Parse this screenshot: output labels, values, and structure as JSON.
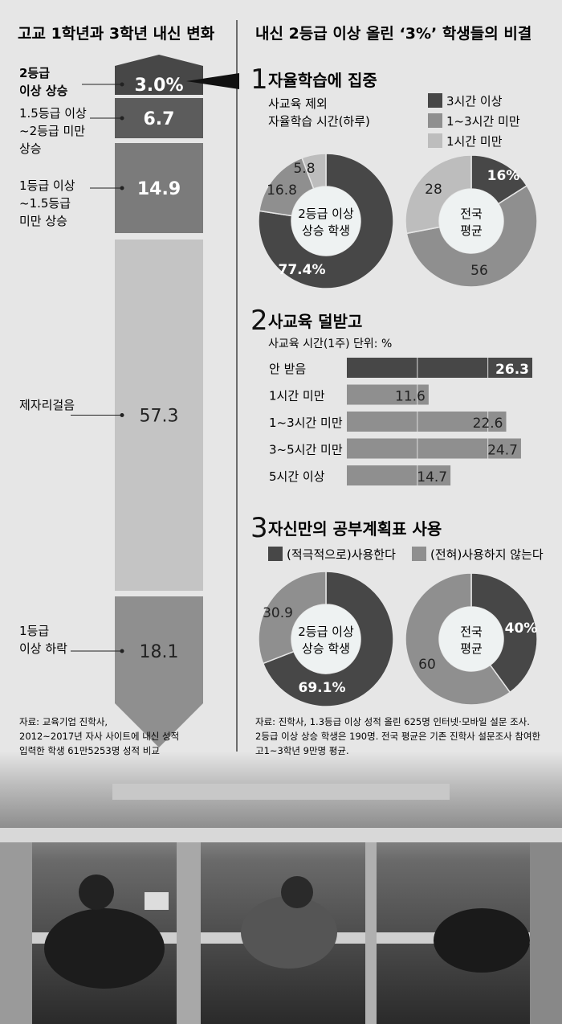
{
  "left": {
    "title": "고교 1학년과 3학년 내신 변화",
    "source": [
      "자료: 교육기업 진학사,",
      "2012~2017년 자사 사이트에 내신 성적",
      "입력한 학생 61만5253명 성적 비교"
    ]
  },
  "right": {
    "title": "내신 2등급 이상 올린 ‘3%’ 학생들의 비결",
    "source": [
      "자료: 진학사, 1.3등급 이상 성적 올린 625명 인터넷·모바일 설문 조사.",
      "2등급 이상 상승 학생은 190명. 전국 평균은 기존 진학사 설문조사 참여한",
      "고1~3학년 9만명 평균."
    ]
  },
  "colors": {
    "dark": "#474747",
    "mid": "#8f8f8f",
    "light": "#bdbdbd",
    "bg": "#e6e6e6",
    "inner": "#eef2f2"
  },
  "chart_data": [
    {
      "type": "bar",
      "title": "고교 1학년과 3학년 내신 변화",
      "orientation": "stacked-vertical",
      "unit": "%",
      "segments": [
        {
          "label": [
            "2등급",
            "이상 상승"
          ],
          "value": 3.0,
          "display": "3.0%",
          "color": "#474747"
        },
        {
          "label": [
            "1.5등급 이상",
            "~2등급 미만",
            "상승"
          ],
          "value": 6.7,
          "display": "6.7",
          "color": "#5c5c5c"
        },
        {
          "label": [
            "1등급 이상",
            "~1.5등급",
            "미만 상승"
          ],
          "value": 14.9,
          "display": "14.9",
          "color": "#7b7b7b"
        },
        {
          "label": [
            "제자리걸음"
          ],
          "value": 57.3,
          "display": "57.3",
          "color": "#c4c4c4"
        },
        {
          "label": [
            "1등급",
            "이상 하락"
          ],
          "value": 18.1,
          "display": "18.1",
          "color": "#8f8f8f"
        }
      ]
    },
    {
      "type": "pie",
      "section_number": "1",
      "section_title": "자율학습에 집중",
      "subtitle": [
        "사교육 제외",
        "자율학습 시간(하루)"
      ],
      "legend": [
        "3시간 이상",
        "1~3시간 미만",
        "1시간 미만"
      ],
      "donuts": [
        {
          "center": [
            "2등급 이상",
            "상승 학생"
          ],
          "values": [
            77.4,
            16.8,
            5.8
          ],
          "labels": [
            "77.4%",
            "16.8",
            "5.8"
          ]
        },
        {
          "center": [
            "전국",
            "평균"
          ],
          "values": [
            16,
            56,
            28
          ],
          "labels": [
            "16%",
            "56",
            "28"
          ]
        }
      ]
    },
    {
      "type": "bar",
      "section_number": "2",
      "section_title": "사교육 덜받고",
      "subtitle": "사교육 시간(1주)   단위: %",
      "categories": [
        "안 받음",
        "1시간 미만",
        "1~3시간 미만",
        "3~5시간 미만",
        "5시간 이상"
      ],
      "values": [
        26.3,
        11.6,
        22.6,
        24.7,
        14.7
      ],
      "highlight_index": 0,
      "xlim": [
        0,
        26.3
      ],
      "grid": [
        10,
        20
      ]
    },
    {
      "type": "pie",
      "section_number": "3",
      "section_title": "자신만의 공부계획표 사용",
      "legend": [
        "(적극적으로)사용한다",
        "(전혀)사용하지 않는다"
      ],
      "donuts": [
        {
          "center": [
            "2등급 이상",
            "상승 학생"
          ],
          "values": [
            69.1,
            30.9
          ],
          "labels": [
            "69.1%",
            "30.9"
          ]
        },
        {
          "center": [
            "전국",
            "평균"
          ],
          "values": [
            40,
            60
          ],
          "labels": [
            "40%",
            "60"
          ]
        }
      ]
    }
  ]
}
